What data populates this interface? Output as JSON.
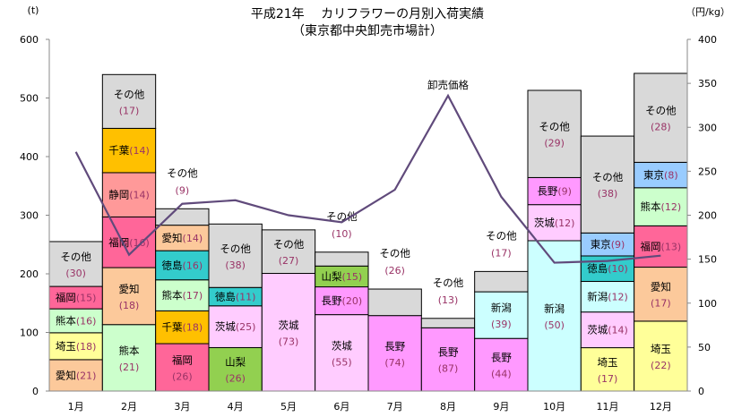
{
  "chart_data": {
    "type": "bar",
    "stacked": true,
    "title": "平成21年　 カリフラワーの月別入荷実績",
    "subtitle": "（東京都中央卸売市場計）",
    "ylabel": "(t)",
    "y2label": "（円/kg）",
    "ylim": [
      0,
      600
    ],
    "y2lim": [
      0,
      400
    ],
    "yticks": [
      "0",
      "100",
      "200",
      "300",
      "400",
      "500",
      "600"
    ],
    "y2ticks": [
      "0",
      "50",
      "100",
      "150",
      "200",
      "250",
      "300",
      "350",
      "400"
    ],
    "categories": [
      "1月",
      "2月",
      "3月",
      "4月",
      "5月",
      "6月",
      "7月",
      "8月",
      "9月",
      "10月",
      "11月",
      "12月"
    ],
    "colors": {
      "その他": "#d9d9d9",
      "愛知": "#fcc99b",
      "埼玉": "#ffff99",
      "熊本": "#ccffcc",
      "福岡": "#ff6699",
      "静岡": "#ff9999",
      "千葉": "#ffc000",
      "徳島": "#33cccc",
      "山梨": "#92d050",
      "茨城": "#ffccff",
      "長野": "#ff99ff",
      "新潟": "#ccffff",
      "東京": "#99ccff",
      "price_line": "#604a7b"
    },
    "months": [
      {
        "total": 255,
        "segments": [
          [
            "愛知",
            21
          ],
          [
            "埼玉",
            18
          ],
          [
            "熊本",
            16
          ],
          [
            "福岡",
            15
          ],
          [
            "その他",
            30
          ]
        ]
      },
      {
        "total": 540,
        "segments": [
          [
            "熊本",
            21
          ],
          [
            "愛知",
            18
          ],
          [
            "福岡",
            16
          ],
          [
            "静岡",
            14
          ],
          [
            "千葉",
            14
          ],
          [
            "その他",
            17
          ]
        ]
      },
      {
        "total": 311,
        "segments": [
          [
            "福岡",
            26
          ],
          [
            "千葉",
            18
          ],
          [
            "熊本",
            17
          ],
          [
            "徳島",
            16
          ],
          [
            "愛知",
            14
          ],
          [
            "その他",
            9
          ]
        ]
      },
      {
        "total": 285,
        "segments": [
          [
            "山梨",
            26
          ],
          [
            "茨城",
            25
          ],
          [
            "徳島",
            11
          ],
          [
            "その他",
            38
          ]
        ]
      },
      {
        "total": 275,
        "segments": [
          [
            "茨城",
            73
          ],
          [
            "その他",
            27
          ]
        ]
      },
      {
        "total": 237,
        "segments": [
          [
            "茨城",
            55
          ],
          [
            "長野",
            20
          ],
          [
            "山梨",
            15
          ],
          [
            "その他",
            10
          ]
        ]
      },
      {
        "total": 174,
        "segments": [
          [
            "長野",
            74
          ],
          [
            "その他",
            26
          ]
        ]
      },
      {
        "total": 124,
        "segments": [
          [
            "長野",
            87
          ],
          [
            "その他",
            13
          ]
        ]
      },
      {
        "total": 204,
        "segments": [
          [
            "長野",
            44
          ],
          [
            "新潟",
            39
          ],
          [
            "その他",
            17
          ]
        ]
      },
      {
        "total": 513,
        "segments": [
          [
            "新潟",
            50
          ],
          [
            "茨城",
            12
          ],
          [
            "長野",
            9
          ],
          [
            "その他",
            29
          ]
        ]
      },
      {
        "total": 435,
        "segments": [
          [
            "埼玉",
            17
          ],
          [
            "茨城",
            14
          ],
          [
            "新潟",
            12
          ],
          [
            "徳島",
            10
          ],
          [
            "東京",
            9
          ],
          [
            "その他",
            38
          ]
        ]
      },
      {
        "total": 542,
        "segments": [
          [
            "埼玉",
            22
          ],
          [
            "愛知",
            17
          ],
          [
            "福岡",
            13
          ],
          [
            "熊本",
            12
          ],
          [
            "東京",
            8
          ],
          [
            "その他",
            28
          ]
        ]
      }
    ],
    "price_series": {
      "name": "卸売価格",
      "values": [
        272,
        155,
        213,
        217,
        200,
        192,
        229,
        336,
        221,
        146,
        148,
        154
      ]
    }
  }
}
